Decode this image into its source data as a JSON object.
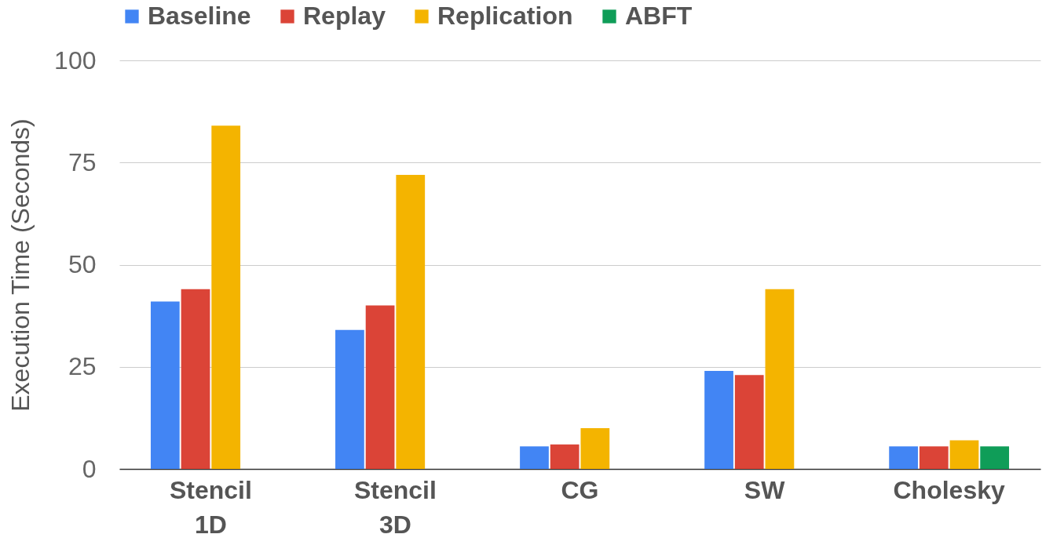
{
  "chart_data": {
    "type": "bar",
    "ylabel": "Execution Time (Seconds)",
    "categories": [
      "Stencil\n1D",
      "Stencil\n3D",
      "CG",
      "SW",
      "Cholesky"
    ],
    "series": [
      {
        "name": "Baseline",
        "color": "#4285f4",
        "values": [
          41,
          34,
          5.5,
          24,
          5.5
        ]
      },
      {
        "name": "Replay",
        "color": "#db4437",
        "values": [
          44,
          40,
          6,
          23,
          5.5
        ]
      },
      {
        "name": "Replication",
        "color": "#f4b400",
        "values": [
          84,
          72,
          10,
          44,
          7
        ]
      },
      {
        "name": "ABFT",
        "color": "#0f9d58",
        "values": [
          null,
          null,
          null,
          null,
          5.5
        ]
      }
    ],
    "ylim": [
      0,
      100
    ],
    "yticks": [
      0,
      25,
      50,
      75,
      100
    ],
    "grid": "y",
    "legend": "top"
  }
}
